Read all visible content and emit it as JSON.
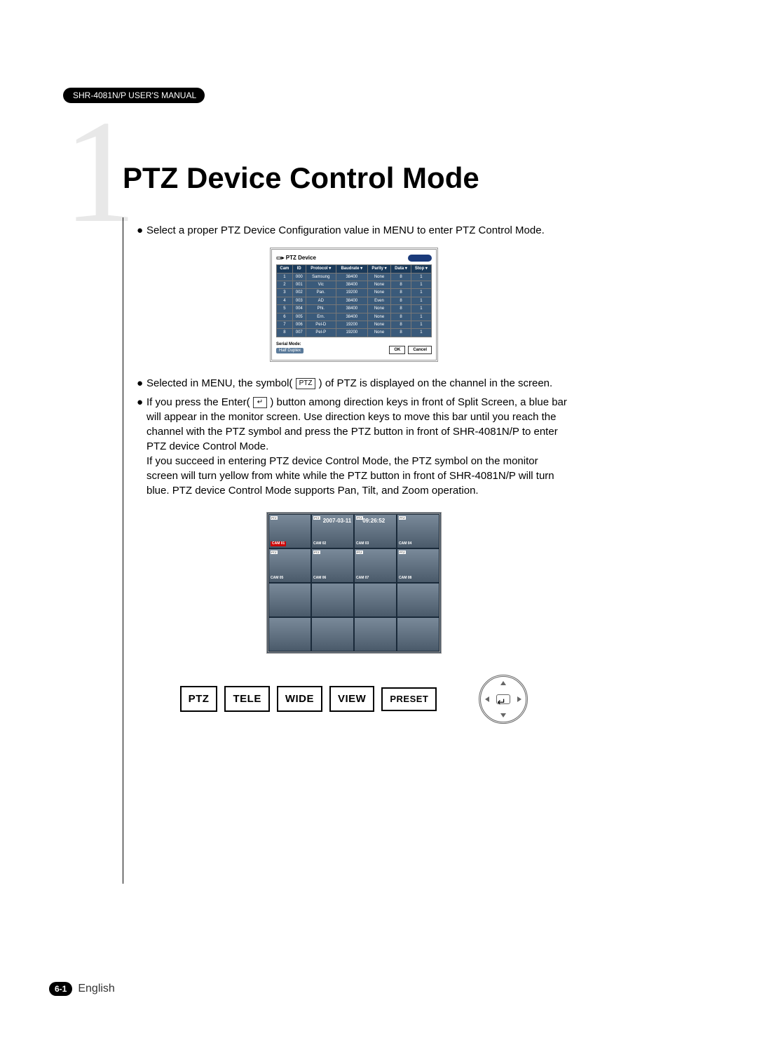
{
  "header_badge": "SHR-4081N/P USER'S MANUAL",
  "chapter_number": "1",
  "title": "PTZ Device Control Mode",
  "bullet1": "Select a proper PTZ Device Configuration value in MENU to enter PTZ Control Mode.",
  "bullet2_a": "Selected in MENU, the symbol(",
  "bullet2_ptz": "PTZ",
  "bullet2_b": ") of PTZ is displayed on the channel in the screen.",
  "bullet3_a": "If you press the Enter(",
  "bullet3_enter": "↵",
  "bullet3_b": ") button among direction keys in front of Split Screen, a blue bar will appear in the monitor screen. Use direction keys to move this bar until you reach the channel with the PTZ symbol and press the PTZ button in front of SHR-4081N/P to enter PTZ device Control Mode.",
  "bullet3_c": "If you succeed in entering PTZ device Control Mode, the PTZ symbol on the monitor screen will turn yellow from white while the PTZ button in front of SHR-4081N/P will turn blue. PTZ device Control Mode supports Pan, Tilt, and Zoom operation.",
  "ptz_table": {
    "title": "PTZ Device",
    "columns": [
      "Cam",
      "ID",
      "Protocol ▾",
      "Baudrate ▾",
      "Parity ▾",
      "Data ▾",
      "Stop ▾"
    ],
    "rows": [
      [
        "1",
        "000",
        "Samsung",
        "38400",
        "None",
        "8",
        "1"
      ],
      [
        "2",
        "001",
        "Vic",
        "38400",
        "None",
        "8",
        "1"
      ],
      [
        "3",
        "002",
        "Pan.",
        "19200",
        "None",
        "8",
        "1"
      ],
      [
        "4",
        "003",
        "AD",
        "38400",
        "Even",
        "8",
        "1"
      ],
      [
        "5",
        "004",
        "Phi.",
        "38400",
        "None",
        "8",
        "1"
      ],
      [
        "6",
        "005",
        "Ern.",
        "38400",
        "None",
        "8",
        "1"
      ],
      [
        "7",
        "006",
        "Pel-D",
        "19200",
        "None",
        "8",
        "1"
      ],
      [
        "8",
        "007",
        "Pel-P",
        "19200",
        "None",
        "8",
        "1"
      ]
    ],
    "serial_label": "Serial Mode:",
    "serial_value": "Half Duplex",
    "ok": "OK",
    "cancel": "Cancel"
  },
  "monitor": {
    "date": "2007-03-11",
    "time": "09:26:52",
    "cams": [
      "CAM 01",
      "CAM 02",
      "CAM 03",
      "CAM 04",
      "CAM 05",
      "CAM 06",
      "CAM 07",
      "CAM 08"
    ],
    "ptz_badge": "PTZ"
  },
  "controls": {
    "ptz": "PTZ",
    "tele": "TELE",
    "wide": "WIDE",
    "view": "VIEW",
    "preset": "PRESET"
  },
  "footer": {
    "page": "6-1",
    "lang": "English"
  }
}
